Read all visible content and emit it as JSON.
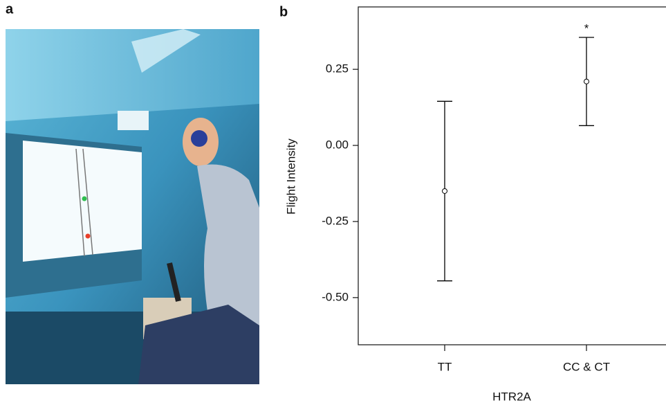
{
  "chart_data": {
    "type": "errorbar",
    "panel_labels": [
      "a",
      "b"
    ],
    "x_label": "HTR2A",
    "y_label": "Flight Intensity",
    "categories": [
      "TT",
      "CC & CT"
    ],
    "values": [
      -0.15,
      0.21
    ],
    "errors": [
      0.295,
      0.145
    ],
    "annotation": "*",
    "color": "#000000",
    "ylim": [
      -0.655,
      0.455
    ],
    "yticks": [
      0.25,
      {
        "value": 0,
        "label": "0.00"
      },
      -0.25,
      {
        "value": -0.5,
        "label": "-0.50"
      }
    ],
    "grid": false
  }
}
